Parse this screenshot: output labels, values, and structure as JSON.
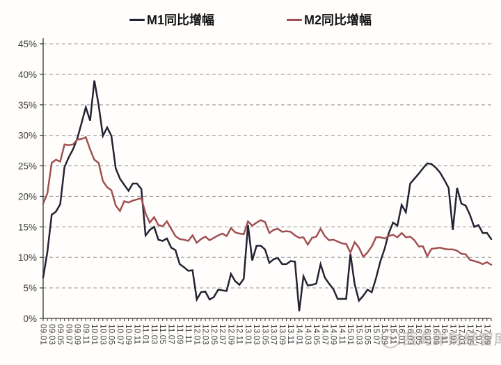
{
  "legend": [
    {
      "label": "M1同比增幅",
      "color": "#252233"
    },
    {
      "label": "M2同比增幅",
      "color": "#a05050"
    }
  ],
  "watermark": {
    "text": "西海岸财经智库"
  },
  "chart_data": {
    "type": "line",
    "title": "",
    "xlabel": "",
    "ylabel": "",
    "ylim": [
      0,
      45
    ],
    "ytick_step": 5,
    "yticks": [
      "0%",
      "5%",
      "10%",
      "15%",
      "20%",
      "25%",
      "30%",
      "35%",
      "40%",
      "45%"
    ],
    "grid": "horizontal-dashed",
    "legend_position": "top",
    "x_label_every": 2,
    "colors": {
      "grid": "#999999",
      "axis": "#333333",
      "tick_label": "#3f3f3f"
    },
    "x": [
      "09.01",
      "09.02",
      "09.03",
      "09.04",
      "09.05",
      "09.06",
      "09.07",
      "09.08",
      "09.09",
      "09.10",
      "09.11",
      "09.12",
      "10.01",
      "10.02",
      "10.03",
      "10.04",
      "10.05",
      "10.06",
      "10.07",
      "10.08",
      "10.09",
      "10.10",
      "10.11",
      "10.12",
      "11.01",
      "11.02",
      "11.03",
      "11.04",
      "11.05",
      "11.06",
      "11.07",
      "11.08",
      "11.09",
      "11.10",
      "11.11",
      "11.12",
      "12.01",
      "12.02",
      "12.03",
      "12.04",
      "12.05",
      "12.06",
      "12.07",
      "12.08",
      "12.09",
      "12.10",
      "12.11",
      "12.12",
      "13.01",
      "13.02",
      "13.03",
      "13.04",
      "13.05",
      "13.06",
      "13.07",
      "13.08",
      "13.09",
      "13.10",
      "13.11",
      "13.12",
      "14.01",
      "14.02",
      "14.03",
      "14.04",
      "14.05",
      "14.06",
      "14.07",
      "14.08",
      "14.09",
      "14.10",
      "14.11",
      "14.12",
      "15.01",
      "15.02",
      "15.03",
      "15.04",
      "15.05",
      "15.06",
      "15.07",
      "15.08",
      "15.09",
      "15.10",
      "15.11",
      "15.12",
      "16.01",
      "16.02",
      "16.03",
      "16.04",
      "16.05",
      "16.06",
      "16.07",
      "16.08",
      "16.09",
      "16.10",
      "16.11",
      "16.12",
      "17.01",
      "17.02",
      "17.03",
      "17.04",
      "17.05",
      "17.06",
      "17.07",
      "17.08",
      "17.09",
      "17.10"
    ],
    "series": [
      {
        "name": "M1同比增幅",
        "color": "#252233",
        "values": [
          6.7,
          10.9,
          17.0,
          17.5,
          18.7,
          24.8,
          26.4,
          27.7,
          29.5,
          32.0,
          34.6,
          32.4,
          39.0,
          35.0,
          29.9,
          31.3,
          29.9,
          24.6,
          22.9,
          21.9,
          20.9,
          22.1,
          22.1,
          21.2,
          13.6,
          14.5,
          15.0,
          12.9,
          12.7,
          13.1,
          11.6,
          11.2,
          8.9,
          8.4,
          7.8,
          7.9,
          3.1,
          4.3,
          4.4,
          3.1,
          3.5,
          4.7,
          4.6,
          4.5,
          7.3,
          6.1,
          5.5,
          6.5,
          15.3,
          9.5,
          11.9,
          11.9,
          11.3,
          9.1,
          9.7,
          9.9,
          8.9,
          8.9,
          9.4,
          9.3,
          1.2,
          6.9,
          5.4,
          5.5,
          5.7,
          8.9,
          6.7,
          5.7,
          4.8,
          3.2,
          3.2,
          3.2,
          10.6,
          5.6,
          2.9,
          3.7,
          4.7,
          4.3,
          6.6,
          9.3,
          11.4,
          14.0,
          15.7,
          15.2,
          18.6,
          17.4,
          22.1,
          22.9,
          23.7,
          24.6,
          25.4,
          25.3,
          24.7,
          23.9,
          22.7,
          21.4,
          14.5,
          21.4,
          18.8,
          18.5,
          17.0,
          15.0,
          15.3,
          14.0,
          14.0,
          13.0
        ]
      },
      {
        "name": "M2同比增幅",
        "color": "#a05050",
        "values": [
          18.8,
          20.5,
          25.5,
          26.0,
          25.7,
          28.5,
          28.4,
          28.5,
          29.3,
          29.4,
          29.7,
          27.7,
          26.0,
          25.5,
          22.5,
          21.5,
          21.0,
          18.5,
          17.6,
          19.2,
          19.0,
          19.3,
          19.5,
          19.7,
          17.2,
          15.7,
          16.6,
          15.3,
          15.1,
          15.9,
          14.7,
          13.5,
          13.0,
          12.9,
          12.7,
          13.6,
          12.4,
          13.0,
          13.4,
          12.8,
          13.2,
          13.6,
          13.9,
          13.5,
          14.8,
          14.1,
          13.9,
          13.8,
          15.9,
          15.2,
          15.7,
          16.1,
          15.8,
          14.0,
          14.5,
          14.7,
          14.2,
          14.3,
          14.2,
          13.6,
          13.2,
          13.3,
          12.1,
          13.2,
          13.4,
          14.7,
          13.5,
          12.8,
          12.9,
          12.6,
          12.3,
          12.2,
          10.8,
          12.5,
          11.6,
          10.1,
          10.8,
          11.8,
          13.3,
          13.3,
          13.1,
          13.5,
          13.7,
          13.3,
          14.0,
          13.3,
          13.4,
          12.8,
          11.8,
          11.8,
          10.2,
          11.4,
          11.5,
          11.6,
          11.4,
          11.3,
          11.3,
          11.1,
          10.6,
          10.5,
          9.6,
          9.4,
          9.2,
          8.9,
          9.2,
          8.8
        ]
      }
    ]
  }
}
